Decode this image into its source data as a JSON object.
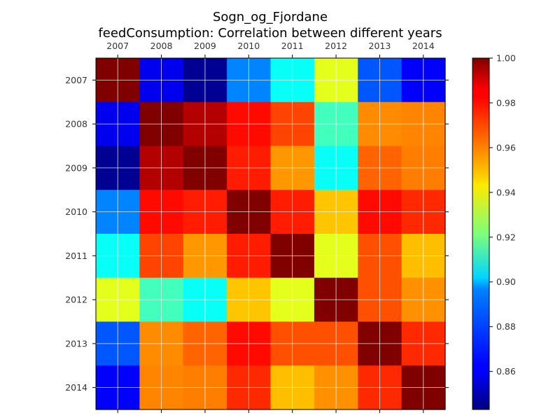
{
  "chart_data": {
    "type": "heatmap",
    "title": "Sogn_og_Fjordane",
    "subtitle": "feedConsumption: Correlation between different years",
    "x_labels": [
      "2007",
      "2008",
      "2009",
      "2010",
      "2011",
      "2012",
      "2013",
      "2014"
    ],
    "y_labels": [
      "2007",
      "2008",
      "2009",
      "2010",
      "2011",
      "2012",
      "2013",
      "2014"
    ],
    "matrix": [
      [
        1.0,
        0.86,
        0.846,
        0.883,
        0.903,
        0.937,
        0.876,
        0.862
      ],
      [
        0.86,
        1.0,
        0.992,
        0.979,
        0.97,
        0.912,
        0.959,
        0.96
      ],
      [
        0.846,
        0.992,
        1.0,
        0.976,
        0.957,
        0.903,
        0.965,
        0.961
      ],
      [
        0.883,
        0.979,
        0.976,
        1.0,
        0.976,
        0.95,
        0.979,
        0.974
      ],
      [
        0.903,
        0.97,
        0.957,
        0.976,
        1.0,
        0.937,
        0.968,
        0.951
      ],
      [
        0.937,
        0.912,
        0.903,
        0.95,
        0.937,
        1.0,
        0.968,
        0.958
      ],
      [
        0.876,
        0.959,
        0.965,
        0.979,
        0.968,
        0.968,
        1.0,
        0.974
      ],
      [
        0.862,
        0.96,
        0.961,
        0.974,
        0.951,
        0.958,
        0.974,
        1.0
      ]
    ],
    "colorbar": {
      "vmin": 0.843,
      "vmax": 1.0,
      "ticks": [
        0.86,
        0.88,
        0.9,
        0.92,
        0.94,
        0.96,
        0.98,
        1.0
      ],
      "tick_labels": [
        "0.86",
        "0.88",
        "0.90",
        "0.92",
        "0.94",
        "0.96",
        "0.98",
        "1.00"
      ]
    },
    "colormap": "jet",
    "grid": true
  }
}
